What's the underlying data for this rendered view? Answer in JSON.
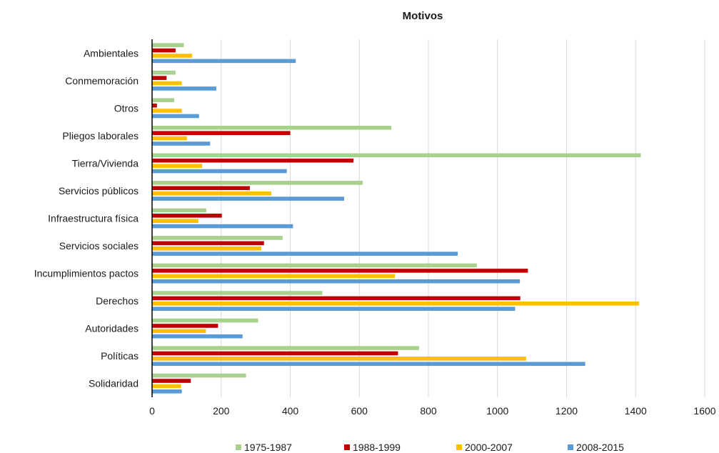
{
  "chart_data": {
    "type": "bar",
    "orientation": "horizontal",
    "title": "Motivos",
    "xlabel": "",
    "ylabel": "",
    "xlim": [
      0,
      1600
    ],
    "xticks": [
      0,
      200,
      400,
      600,
      800,
      1000,
      1200,
      1400,
      1600
    ],
    "grid": "vertical",
    "legend_position": "bottom",
    "categories": [
      "Ambientales",
      "Conmemoración",
      "Otros",
      "Pliegos laborales",
      "Tierra/Vivienda",
      "Servicios públicos",
      "Infraestructura física",
      "Servicios sociales",
      "Incumplimientos pactos",
      "Derechos",
      "Autoridades",
      "Políticas",
      "Solidaridad"
    ],
    "series": [
      {
        "name": "1975-1987",
        "color": "#a9d18e",
        "values": [
          92,
          68,
          64,
          693,
          1415,
          610,
          157,
          378,
          940,
          493,
          307,
          773,
          272
        ]
      },
      {
        "name": "1988-1999",
        "color": "#c00000",
        "values": [
          68,
          42,
          14,
          400,
          583,
          283,
          202,
          324,
          1088,
          1066,
          191,
          712,
          112
        ]
      },
      {
        "name": "2000-2007",
        "color": "#ffc000",
        "values": [
          116,
          86,
          86,
          101,
          145,
          345,
          134,
          316,
          703,
          1410,
          156,
          1083,
          84
        ]
      },
      {
        "name": "2008-2015",
        "color": "#5b9bd5",
        "values": [
          416,
          186,
          136,
          168,
          390,
          556,
          408,
          885,
          1065,
          1051,
          262,
          1254,
          86
        ]
      }
    ]
  }
}
